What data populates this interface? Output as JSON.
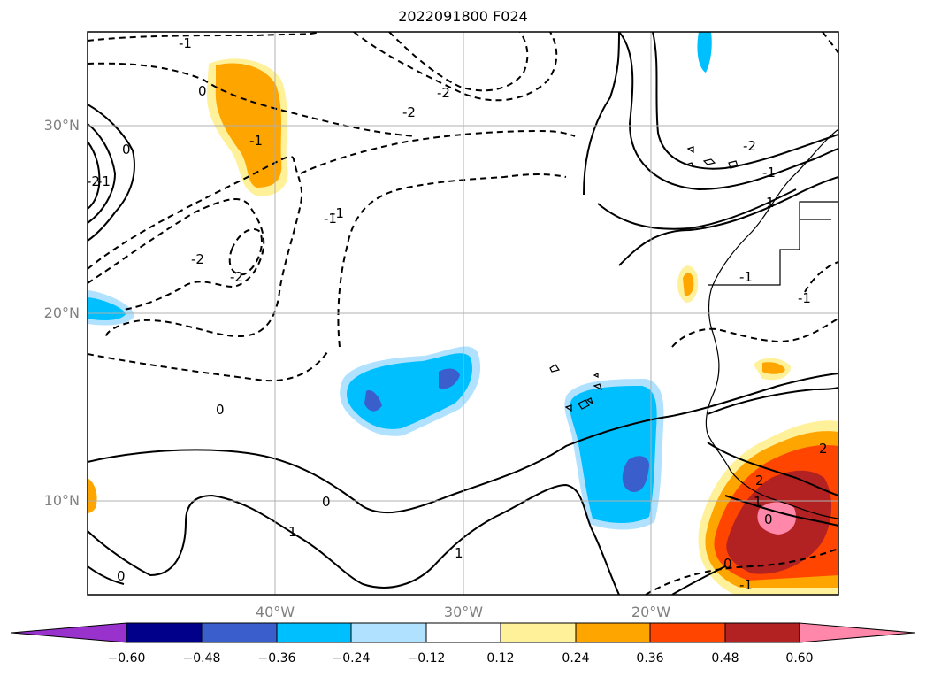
{
  "title": "2022091800 F024",
  "lat_ticks": [
    {
      "label": "30°N",
      "value": 30
    },
    {
      "label": "20°N",
      "value": 20
    },
    {
      "label": "10°N",
      "value": 10
    }
  ],
  "lon_ticks": [
    {
      "label": "40°W",
      "value": -40
    },
    {
      "label": "30°W",
      "value": -30
    },
    {
      "label": "20°W",
      "value": -20
    }
  ],
  "map_extent": {
    "lon_min": -50,
    "lon_max": -10,
    "lat_min": 5,
    "lat_max": 35
  },
  "gridlines": true,
  "contour_labels": [
    "-1",
    "-2",
    "0",
    "-1",
    "-2",
    "-2",
    "-1",
    "0",
    "-1",
    "-2",
    "-2",
    "-1",
    "0",
    "-1",
    "-2",
    "0",
    "1",
    "0",
    "1",
    "-1",
    "1",
    "2",
    "1",
    "0",
    "-1",
    "0",
    "-1",
    "2"
  ],
  "colorbar": {
    "tick_labels": [
      "−0.60",
      "−0.48",
      "−0.36",
      "−0.24",
      "−0.12",
      "0.12",
      "0.24",
      "0.36",
      "0.48",
      "0.60"
    ],
    "colors": [
      "#9932cc",
      "#00008b",
      "#3a5fcd",
      "#00bfff",
      "#b0e2ff",
      "#ffffff",
      "#fff09a",
      "#ffa500",
      "#ff4500",
      "#b22222",
      "#ff88aa"
    ],
    "extend": "both"
  }
}
